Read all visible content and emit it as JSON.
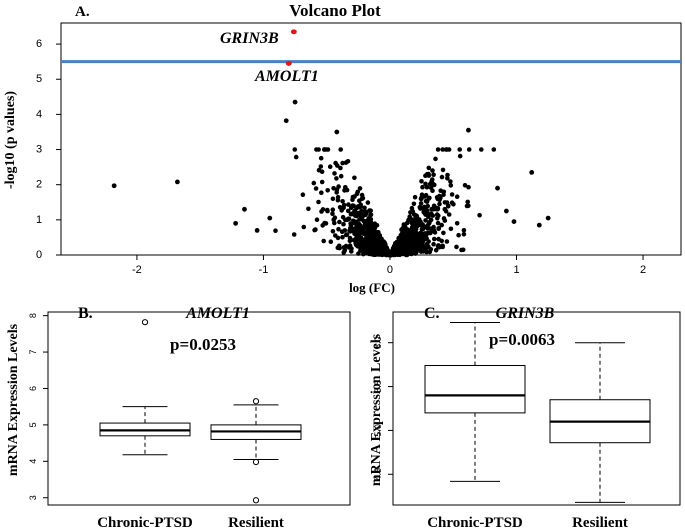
{
  "panel_a": {
    "letter": "A.",
    "title": "Volcano Plot",
    "gene_top": "GRIN3B",
    "gene_bottom": "AMOLT1"
  },
  "panel_b": {
    "letter": "B.",
    "title": "AMOLT1",
    "pvalue": "p=0.0253"
  },
  "panel_c": {
    "letter": "C.",
    "title": "GRIN3B",
    "pvalue": "p=0.0063"
  },
  "colors": {
    "points": "#000000",
    "highlight": "#e8141b",
    "threshold": "#4a7ec8"
  },
  "chart_data": [
    {
      "type": "scatter",
      "title": "Volcano Plot",
      "xlabel": "log (FC)",
      "ylabel": "-log10 (p values)",
      "xlim": [
        -2.6,
        2.3
      ],
      "ylim": [
        0,
        6.6
      ],
      "xticks": [
        -2,
        -1,
        0,
        1,
        2
      ],
      "yticks": [
        0,
        1,
        2,
        3,
        4,
        5,
        6
      ],
      "threshold_y": 5.5,
      "highlighted": [
        {
          "label": "GRIN3B",
          "x": -0.76,
          "y": 6.35
        },
        {
          "label": "AMOLT1",
          "x": -0.8,
          "y": 5.45
        }
      ],
      "outliers": [
        [
          -2.18,
          1.97
        ],
        [
          -1.68,
          2.08
        ],
        [
          -0.75,
          4.35
        ],
        [
          -0.82,
          3.82
        ],
        [
          -1.15,
          1.3
        ],
        [
          -1.22,
          0.9
        ],
        [
          -0.95,
          1.05
        ],
        [
          1.12,
          2.35
        ],
        [
          1.25,
          1.05
        ],
        [
          1.18,
          0.85
        ],
        [
          0.92,
          1.25
        ],
        [
          0.62,
          3.55
        ],
        [
          -0.42,
          3.5
        ],
        [
          0.85,
          1.9
        ],
        [
          -1.05,
          0.7
        ],
        [
          0.98,
          0.95
        ]
      ],
      "cloud_points": 900
    },
    {
      "type": "box",
      "title": "AMOLT1",
      "ylabel": "mRNA Expression Levels",
      "ylim": [
        2.8,
        8.1
      ],
      "yticks": [
        3,
        4,
        5,
        6,
        7,
        8
      ],
      "categories": [
        "Chronic-PTSD",
        "Resilient"
      ],
      "boxes": [
        {
          "min": 4.18,
          "q1": 4.7,
          "median": 4.85,
          "q3": 5.05,
          "max": 5.5,
          "outliers": [
            7.82
          ]
        },
        {
          "min": 4.05,
          "q1": 4.6,
          "median": 4.82,
          "q3": 5.0,
          "max": 5.55,
          "outliers": [
            5.65,
            3.98,
            2.93
          ]
        }
      ]
    },
    {
      "type": "box",
      "title": "GRIN3B",
      "ylabel": "mRNA Expression Levels",
      "ylim": [
        4.15,
        6.35
      ],
      "yticks": [
        4.5,
        5.0,
        5.5,
        6.0
      ],
      "ytick_labels": [
        "4.5",
        "5.0",
        "5.5",
        "6.0"
      ],
      "categories": [
        "Chronic-PTSD",
        "Resilient"
      ],
      "boxes": [
        {
          "min": 4.42,
          "q1": 5.2,
          "median": 5.4,
          "q3": 5.74,
          "max": 6.23,
          "outliers": []
        },
        {
          "min": 4.18,
          "q1": 4.86,
          "median": 5.1,
          "q3": 5.35,
          "max": 6.0,
          "outliers": []
        }
      ]
    }
  ]
}
